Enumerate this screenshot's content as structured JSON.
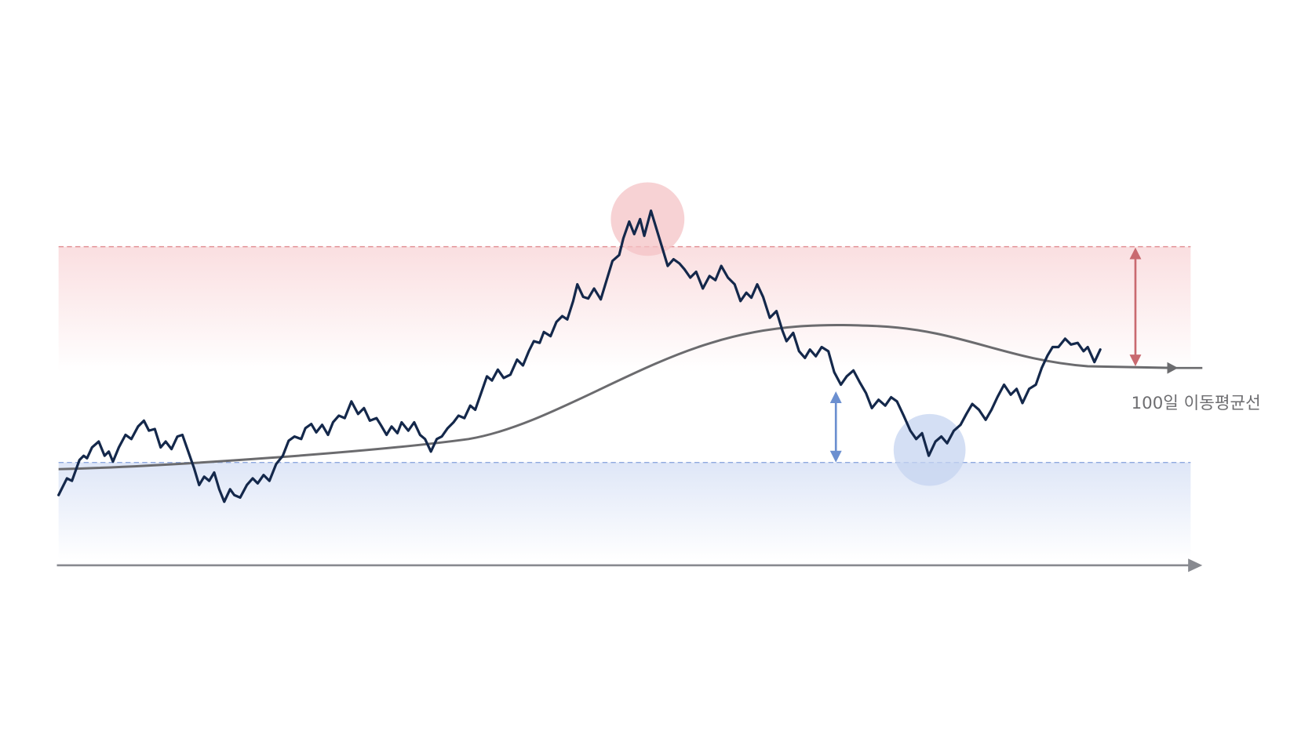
{
  "labels": {
    "moving_average": "100일 이동평균선"
  }
}
